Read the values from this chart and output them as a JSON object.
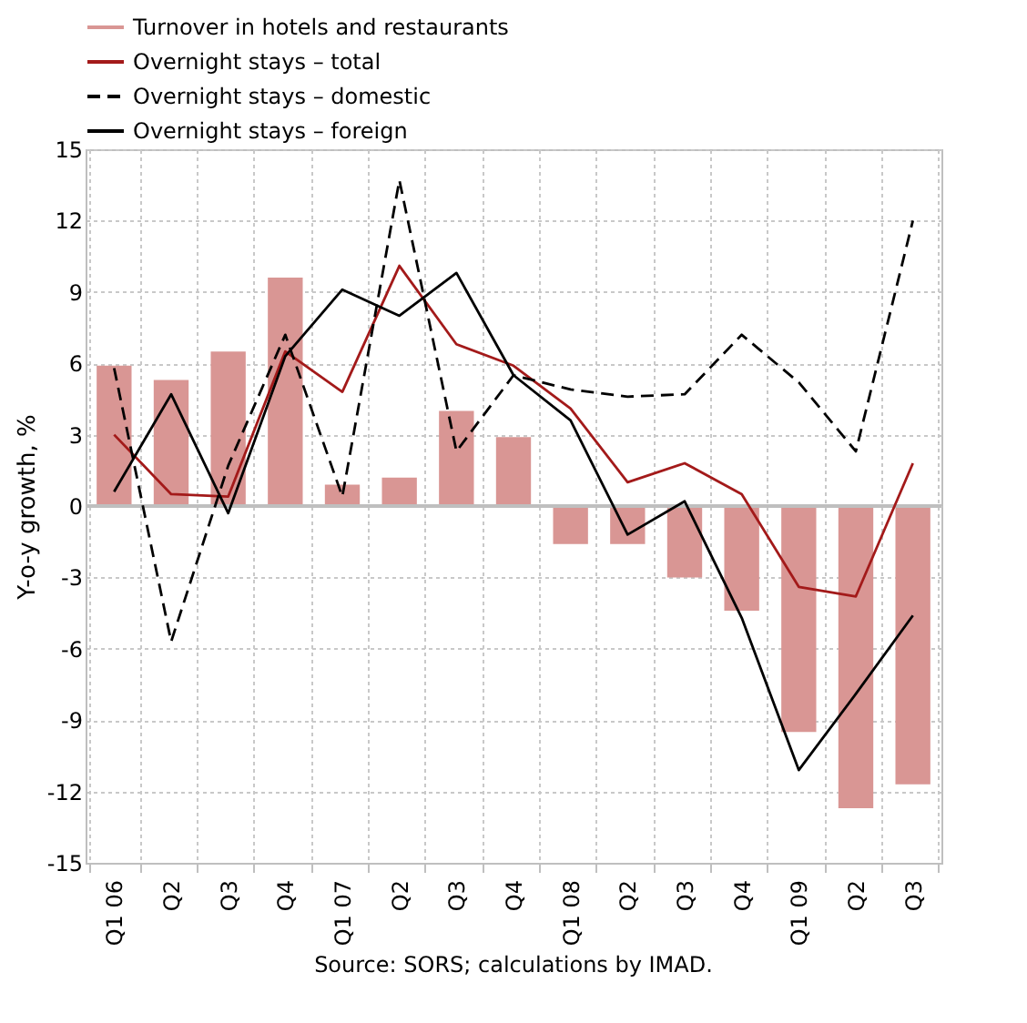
{
  "chart_data": {
    "type": "bar",
    "categories": [
      "Q1 06",
      "Q2",
      "Q3",
      "Q4",
      "Q1 07",
      "Q2",
      "Q3",
      "Q4",
      "Q1 08",
      "Q2",
      "Q3",
      "Q4",
      "Q1 09",
      "Q2",
      "Q3"
    ],
    "series": [
      {
        "name": "Turnover in hotels and restaurants",
        "color": "#d99694",
        "values": [
          5.9,
          5.3,
          6.5,
          9.6,
          0.9,
          1.2,
          4.0,
          2.9,
          -1.6,
          -1.6,
          -3.0,
          -4.4,
          -9.5,
          -12.7,
          -11.7
        ]
      },
      {
        "name": "Overnight stays – total",
        "type": "line",
        "line_style": "solid",
        "color": "#a31a1a",
        "values": [
          3.0,
          0.5,
          0.4,
          6.5,
          4.8,
          10.1,
          6.8,
          5.9,
          4.1,
          1.0,
          1.8,
          0.5,
          -3.4,
          -3.8,
          1.8
        ]
      },
      {
        "name": "Overnight stays – domestic",
        "type": "line",
        "line_style": "dashed",
        "color": "#000000",
        "values": [
          5.8,
          -5.7,
          1.7,
          7.2,
          0.4,
          13.7,
          2.3,
          5.5,
          4.9,
          4.6,
          4.7,
          7.2,
          5.2,
          2.3,
          12.0
        ]
      },
      {
        "name": "Overnight stays – foreign",
        "type": "line",
        "line_style": "solid",
        "color": "#000000",
        "values": [
          0.6,
          4.7,
          -0.3,
          6.3,
          9.1,
          8.0,
          9.8,
          5.5,
          3.6,
          -1.2,
          0.2,
          -4.7,
          -11.1,
          -7.9,
          -4.6
        ]
      }
    ],
    "ylabel": "Y-o-y growth, %",
    "ylim": [
      -15,
      15
    ],
    "yticks": [
      -15,
      -12,
      -9,
      -6,
      -3,
      0,
      3,
      6,
      9,
      12,
      15
    ],
    "grid": true,
    "legend": "top",
    "ref_lines": [
      {
        "axis": "y",
        "value": 0,
        "color": "#bfbfbf"
      }
    ],
    "annotations": [
      "Source: SORS; calculations by IMAD."
    ]
  }
}
